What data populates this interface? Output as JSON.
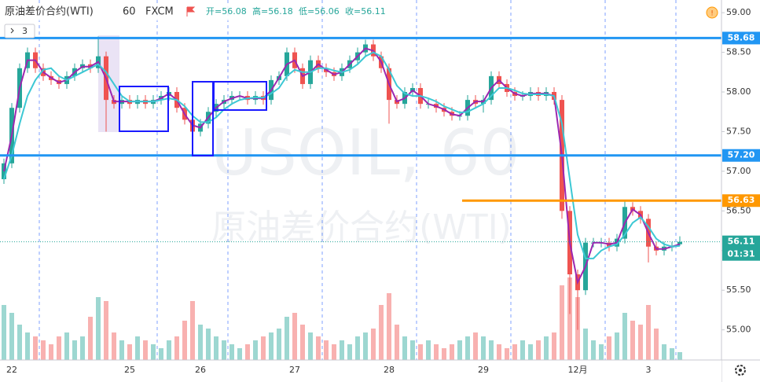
{
  "header": {
    "title": "原油差价合约(WTI)",
    "interval": "60",
    "source": "FXCM",
    "ohlc": [
      "开=56.08",
      "高=56.18",
      "低=56.06",
      "收=56.11"
    ],
    "indicator_count": "3"
  },
  "watermark": {
    "symbol": "USOIL, 60",
    "name": "原油差价合约(WTI)"
  },
  "chart_data": {
    "type": "candlestick",
    "categories": [
      null,
      "22",
      null,
      null,
      null,
      null,
      null,
      null,
      null,
      null,
      null,
      null,
      null,
      null,
      null,
      null,
      "25",
      null,
      null,
      null,
      null,
      null,
      null,
      null,
      null,
      "26",
      null,
      null,
      null,
      null,
      null,
      null,
      null,
      null,
      null,
      null,
      null,
      "27",
      null,
      null,
      null,
      null,
      null,
      null,
      null,
      null,
      null,
      null,
      null,
      "28",
      null,
      null,
      null,
      null,
      null,
      null,
      null,
      null,
      null,
      null,
      null,
      "29",
      null,
      null,
      null,
      null,
      null,
      null,
      null,
      null,
      null,
      null,
      null,
      "12月",
      null,
      null,
      null,
      null,
      null,
      null,
      null,
      null,
      "3",
      null,
      null,
      null,
      null
    ],
    "open": [
      56.9,
      57.1,
      57.8,
      58.3,
      58.5,
      58.3,
      58.2,
      58.15,
      58.1,
      58.2,
      58.3,
      58.35,
      58.3,
      58.45,
      57.9,
      57.85,
      57.9,
      57.85,
      57.9,
      57.85,
      57.9,
      57.95,
      58.0,
      57.8,
      57.65,
      57.5,
      57.6,
      57.75,
      57.85,
      57.9,
      57.95,
      57.95,
      57.9,
      57.95,
      57.9,
      58.15,
      58.2,
      58.5,
      58.3,
      58.1,
      58.4,
      58.3,
      58.25,
      58.2,
      58.3,
      58.4,
      58.5,
      58.6,
      58.45,
      58.3,
      57.9,
      57.85,
      58.0,
      58.05,
      57.85,
      57.85,
      57.8,
      57.75,
      57.7,
      57.7,
      57.9,
      57.85,
      57.9,
      58.2,
      58.1,
      58.0,
      57.95,
      57.95,
      58.0,
      57.95,
      58.0,
      57.9,
      56.5,
      55.7,
      55.5,
      56.1,
      56.1,
      56.1,
      56.05,
      56.15,
      56.55,
      56.5,
      56.4,
      56.05,
      56.0,
      56.05,
      56.08
    ],
    "high": [
      57.16,
      57.86,
      58.36,
      58.56,
      58.56,
      58.36,
      58.26,
      58.21,
      58.26,
      58.36,
      58.41,
      58.41,
      58.7,
      58.51,
      57.96,
      57.96,
      57.96,
      57.96,
      57.96,
      57.96,
      58.01,
      58.06,
      58.06,
      57.86,
      57.71,
      57.66,
      57.81,
      57.91,
      57.96,
      58.01,
      58.01,
      58.01,
      58.01,
      58.01,
      58.21,
      58.26,
      58.56,
      58.56,
      58.36,
      58.46,
      58.46,
      58.36,
      58.31,
      58.36,
      58.46,
      58.56,
      58.66,
      58.66,
      58.51,
      58.36,
      57.96,
      58.06,
      58.11,
      58.11,
      57.91,
      57.91,
      57.86,
      57.81,
      57.76,
      57.96,
      57.96,
      57.96,
      58.26,
      58.26,
      58.16,
      58.06,
      58.01,
      58.06,
      58.06,
      58.06,
      58.06,
      57.96,
      56.56,
      55.76,
      56.16,
      56.16,
      56.16,
      56.16,
      56.21,
      56.63,
      56.61,
      56.56,
      56.46,
      56.11,
      56.11,
      56.11,
      56.18
    ],
    "low": [
      56.84,
      57.04,
      57.74,
      58.24,
      58.24,
      58.14,
      58.09,
      58.04,
      58.04,
      58.14,
      58.24,
      58.24,
      58.24,
      57.5,
      57.79,
      57.79,
      57.79,
      57.79,
      57.79,
      57.79,
      57.84,
      57.89,
      57.74,
      57.59,
      57.2,
      57.44,
      57.54,
      57.69,
      57.79,
      57.84,
      57.89,
      57.84,
      57.84,
      57.84,
      57.84,
      58.09,
      58.14,
      58.24,
      58.04,
      58.04,
      58.24,
      58.19,
      58.14,
      58.14,
      58.24,
      58.34,
      58.44,
      58.39,
      58.24,
      57.6,
      57.79,
      57.79,
      57.94,
      57.79,
      57.79,
      57.74,
      57.69,
      57.64,
      57.64,
      57.64,
      57.79,
      57.74,
      57.84,
      58.04,
      57.94,
      57.89,
      57.89,
      57.89,
      57.89,
      57.89,
      57.84,
      56.4,
      55.2,
      55.0,
      55.44,
      56.04,
      56.04,
      55.99,
      55.99,
      56.09,
      56.44,
      56.34,
      55.85,
      55.94,
      55.94,
      55.99,
      56.06
    ],
    "close": [
      57.1,
      57.8,
      58.3,
      58.5,
      58.3,
      58.2,
      58.15,
      58.1,
      58.2,
      58.3,
      58.35,
      58.3,
      58.45,
      57.9,
      57.85,
      57.9,
      57.85,
      57.9,
      57.85,
      57.9,
      57.95,
      58.0,
      57.8,
      57.65,
      57.5,
      57.6,
      57.75,
      57.85,
      57.9,
      57.95,
      57.95,
      57.9,
      57.95,
      57.9,
      58.15,
      58.2,
      58.5,
      58.3,
      58.1,
      58.4,
      58.3,
      58.25,
      58.2,
      58.3,
      58.4,
      58.5,
      58.6,
      58.45,
      58.3,
      57.9,
      57.85,
      58.0,
      58.05,
      57.85,
      57.85,
      57.8,
      57.75,
      57.7,
      57.7,
      57.9,
      57.85,
      57.9,
      58.2,
      58.1,
      58.0,
      57.95,
      57.95,
      58.0,
      57.95,
      58.0,
      57.9,
      56.5,
      55.7,
      55.5,
      56.1,
      56.1,
      56.1,
      56.05,
      56.15,
      56.55,
      56.5,
      56.4,
      56.05,
      56.0,
      56.05,
      56.05,
      56.11
    ],
    "volume": [
      70,
      60,
      45,
      35,
      30,
      25,
      20,
      30,
      35,
      25,
      30,
      55,
      80,
      75,
      35,
      25,
      20,
      30,
      25,
      20,
      15,
      25,
      30,
      50,
      75,
      45,
      40,
      30,
      25,
      20,
      15,
      20,
      25,
      30,
      35,
      40,
      55,
      60,
      45,
      35,
      30,
      25,
      20,
      25,
      20,
      30,
      35,
      40,
      70,
      85,
      45,
      30,
      25,
      20,
      25,
      20,
      15,
      20,
      25,
      30,
      35,
      30,
      25,
      20,
      15,
      20,
      25,
      20,
      25,
      30,
      35,
      95,
      105,
      80,
      40,
      25,
      20,
      30,
      35,
      60,
      50,
      45,
      70,
      40,
      20,
      15,
      10
    ],
    "up_color": "#26a69a",
    "down_color": "#ef5350",
    "series": [
      {
        "color": "#9c27b0",
        "values": [
          57.0,
          57.45,
          58.05,
          58.4,
          58.4,
          58.25,
          58.18,
          58.12,
          58.15,
          58.25,
          58.32,
          58.32,
          58.38,
          58.17,
          57.88,
          57.88,
          57.88,
          57.88,
          57.88,
          57.88,
          57.92,
          57.98,
          57.9,
          57.72,
          57.58,
          57.55,
          57.68,
          57.8,
          57.88,
          57.92,
          57.95,
          57.92,
          57.92,
          57.92,
          58.02,
          58.18,
          58.35,
          58.4,
          58.2,
          58.25,
          58.35,
          58.28,
          58.22,
          58.25,
          58.35,
          58.45,
          58.55,
          58.52,
          58.38,
          58.1,
          57.88,
          57.92,
          58.02,
          57.95,
          57.85,
          57.82,
          57.78,
          57.72,
          57.7,
          57.8,
          57.88,
          57.88,
          58.05,
          58.15,
          58.05,
          57.98,
          57.95,
          57.98,
          57.98,
          57.98,
          57.95,
          57.2,
          56.1,
          55.6,
          55.8,
          56.1,
          56.1,
          56.08,
          56.1,
          56.35,
          56.52,
          56.45,
          56.22,
          56.02,
          56.02,
          56.05,
          56.08
        ]
      },
      {
        "color": "#3cc8d4",
        "values": [
          56.9,
          57.2,
          57.6,
          57.95,
          58.15,
          58.28,
          58.3,
          58.2,
          58.15,
          58.2,
          58.25,
          58.3,
          58.35,
          58.25,
          58.1,
          57.95,
          57.88,
          57.88,
          57.88,
          57.88,
          57.9,
          57.92,
          57.9,
          57.82,
          57.7,
          57.62,
          57.62,
          57.68,
          57.78,
          57.85,
          57.9,
          57.92,
          57.93,
          57.93,
          57.98,
          58.05,
          58.2,
          58.28,
          58.25,
          58.25,
          58.3,
          58.3,
          58.27,
          58.25,
          58.28,
          58.35,
          58.45,
          58.5,
          58.45,
          58.28,
          58.08,
          57.98,
          57.95,
          57.95,
          57.92,
          57.88,
          57.82,
          57.78,
          57.74,
          57.75,
          57.8,
          57.85,
          57.95,
          58.05,
          58.05,
          58.02,
          57.98,
          57.97,
          57.97,
          57.97,
          57.95,
          57.6,
          56.9,
          56.2,
          55.9,
          55.9,
          56.0,
          56.05,
          56.08,
          56.2,
          56.35,
          56.42,
          56.3,
          56.15,
          56.08,
          56.05,
          56.06
        ]
      }
    ],
    "levels": [
      {
        "value": 58.68,
        "label": "58.68",
        "color": "#2196f3"
      },
      {
        "value": 57.2,
        "label": "57.20",
        "color": "#2196f3"
      },
      {
        "value": 56.63,
        "label": "56.63",
        "color": "#ff9800"
      }
    ],
    "last_price": {
      "value": 56.11,
      "label": "56.11",
      "countdown": "01:31",
      "color": "#26a69a"
    },
    "ylim": [
      54.62,
      59.16
    ],
    "yticks": [
      {
        "value": 55,
        "label": "55.00"
      },
      {
        "value": 55.5,
        "label": "55.50"
      },
      {
        "value": 56,
        "label": "56.00"
      },
      {
        "value": 56.5,
        "label": "56.50"
      },
      {
        "value": 57,
        "label": "57.00"
      },
      {
        "value": 57.5,
        "label": "57.50"
      },
      {
        "value": 58,
        "label": "58.00"
      },
      {
        "value": 58.5,
        "label": "58.50"
      },
      {
        "value": 59,
        "label": "59.00"
      }
    ]
  }
}
